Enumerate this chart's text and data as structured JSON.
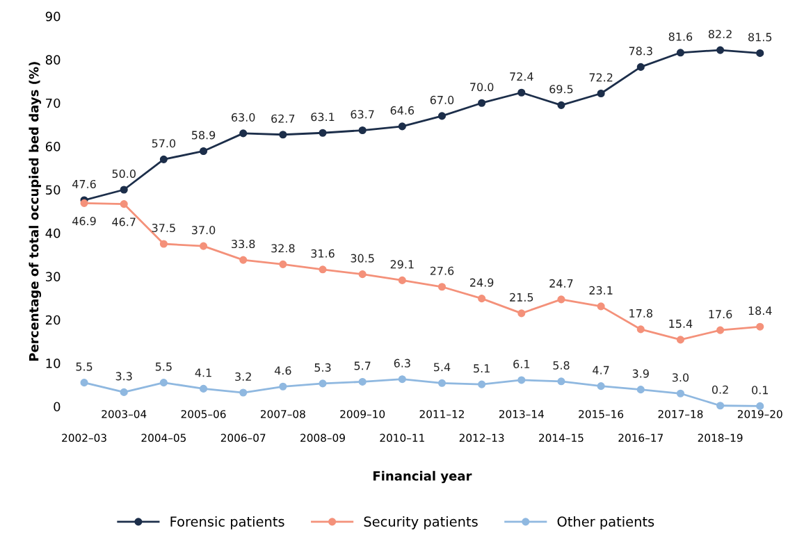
{
  "chart_data": {
    "type": "line",
    "xlabel": "Financial year",
    "ylabel": "Percentage of total occupied bed days (%)",
    "categories": [
      "2002–03",
      "2003–04",
      "2004–05",
      "2005–06",
      "2006–07",
      "2007–08",
      "2008–09",
      "2009–10",
      "2010–11",
      "2011–12",
      "2012–13",
      "2013–14",
      "2014–15",
      "2015–16",
      "2016–17",
      "2017–18",
      "2018–19",
      "2019–20"
    ],
    "series": [
      {
        "name": "Forensic patients",
        "color": "#1c2e4a",
        "values": [
          47.6,
          50,
          57,
          58.9,
          63,
          62.7,
          63.1,
          63.7,
          64.6,
          67,
          70,
          72.4,
          69.5,
          72.2,
          78.3,
          81.6,
          82.2,
          81.5
        ],
        "value_labels": [
          "47.6",
          "50.0",
          "57.0",
          "58.9",
          "63.0",
          "62.7",
          "63.1",
          "63.7",
          "64.6",
          "67.0",
          "70.0",
          "72.4",
          "69.5",
          "72.2",
          "78.3",
          "81.6",
          "82.2",
          "81.5"
        ]
      },
      {
        "name": "Security patients",
        "color": "#f4917a",
        "values": [
          46.9,
          46.7,
          37.5,
          37,
          33.8,
          32.8,
          31.6,
          30.5,
          29.1,
          27.6,
          24.9,
          21.5,
          24.7,
          23.1,
          17.8,
          15.4,
          17.6,
          18.4
        ],
        "value_labels": [
          "46.9",
          "46.7",
          "37.5",
          "37.0",
          "33.8",
          "32.8",
          "31.6",
          "30.5",
          "29.1",
          "27.6",
          "24.9",
          "21.5",
          "24.7",
          "23.1",
          "17.8",
          "15.4",
          "17.6",
          "18.4"
        ]
      },
      {
        "name": "Other patients",
        "color": "#8fb8e0",
        "values": [
          5.5,
          3.3,
          5.5,
          4.1,
          3.2,
          4.6,
          5.3,
          5.7,
          6.3,
          5.4,
          5.1,
          6.1,
          5.8,
          4.7,
          3.9,
          3,
          0.2,
          0.1
        ],
        "value_labels": [
          "5.5",
          "3.3",
          "5.5",
          "4.1",
          "3.2",
          "4.6",
          "5.3",
          "5.7",
          "6.3",
          "5.4",
          "5.1",
          "6.1",
          "5.8",
          "4.7",
          "3.9",
          "3.0",
          "0.2",
          "0.1"
        ]
      }
    ],
    "ylim": [
      0,
      90
    ],
    "yticks": [
      0,
      10,
      20,
      30,
      40,
      50,
      60,
      70,
      80,
      90
    ],
    "marker": "circle",
    "line_style": "solid",
    "grid": false,
    "legend": "bottom"
  }
}
